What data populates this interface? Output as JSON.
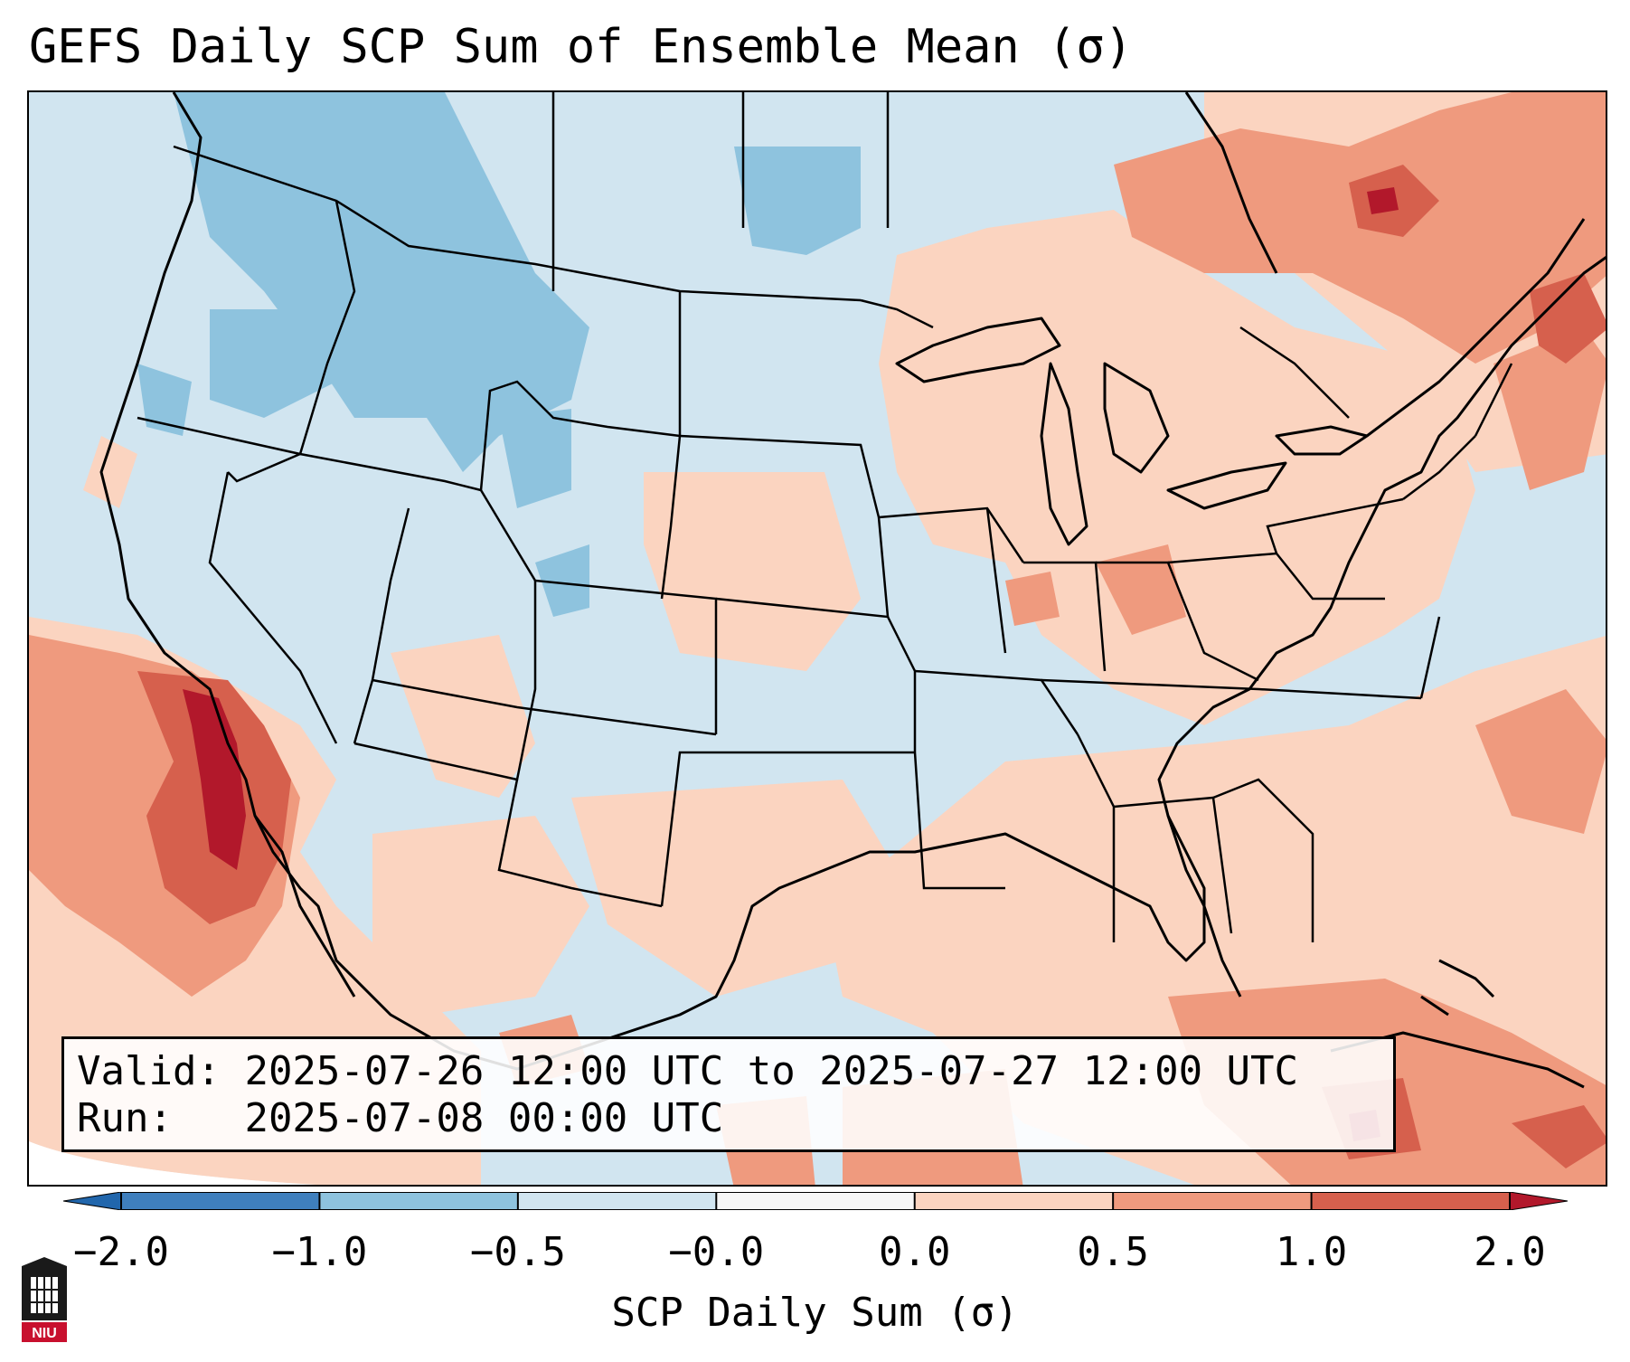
{
  "title": "GEFS Daily SCP Sum of Ensemble Mean (σ)",
  "info": {
    "valid_label": "Valid:",
    "valid_value": "2025-07-26 12:00 UTC to 2025-07-27 12:00 UTC",
    "run_label": "Run:",
    "run_value": "2025-07-08 00:00 UTC"
  },
  "colorbar": {
    "label": "SCP Daily Sum (σ)",
    "ticks": [
      "−2.0",
      "−1.0",
      "−0.5",
      "−0.0",
      "0.0",
      "0.5",
      "1.0",
      "2.0"
    ],
    "bins": [
      {
        "color": "#3f7fbd"
      },
      {
        "color": "#8ec3de"
      },
      {
        "color": "#d1e5f0"
      },
      {
        "color": "#f7f7f7"
      },
      {
        "color": "#fbd4c0"
      },
      {
        "color": "#ef9a7e"
      },
      {
        "color": "#d6604d"
      }
    ],
    "extend_min_color": "#2166ac",
    "extend_max_color": "#b2182b"
  },
  "logo": {
    "text": "NIU",
    "color": "#c8102e"
  },
  "map": {
    "background_color": "#d1e5f0",
    "border_color": "#000000"
  }
}
